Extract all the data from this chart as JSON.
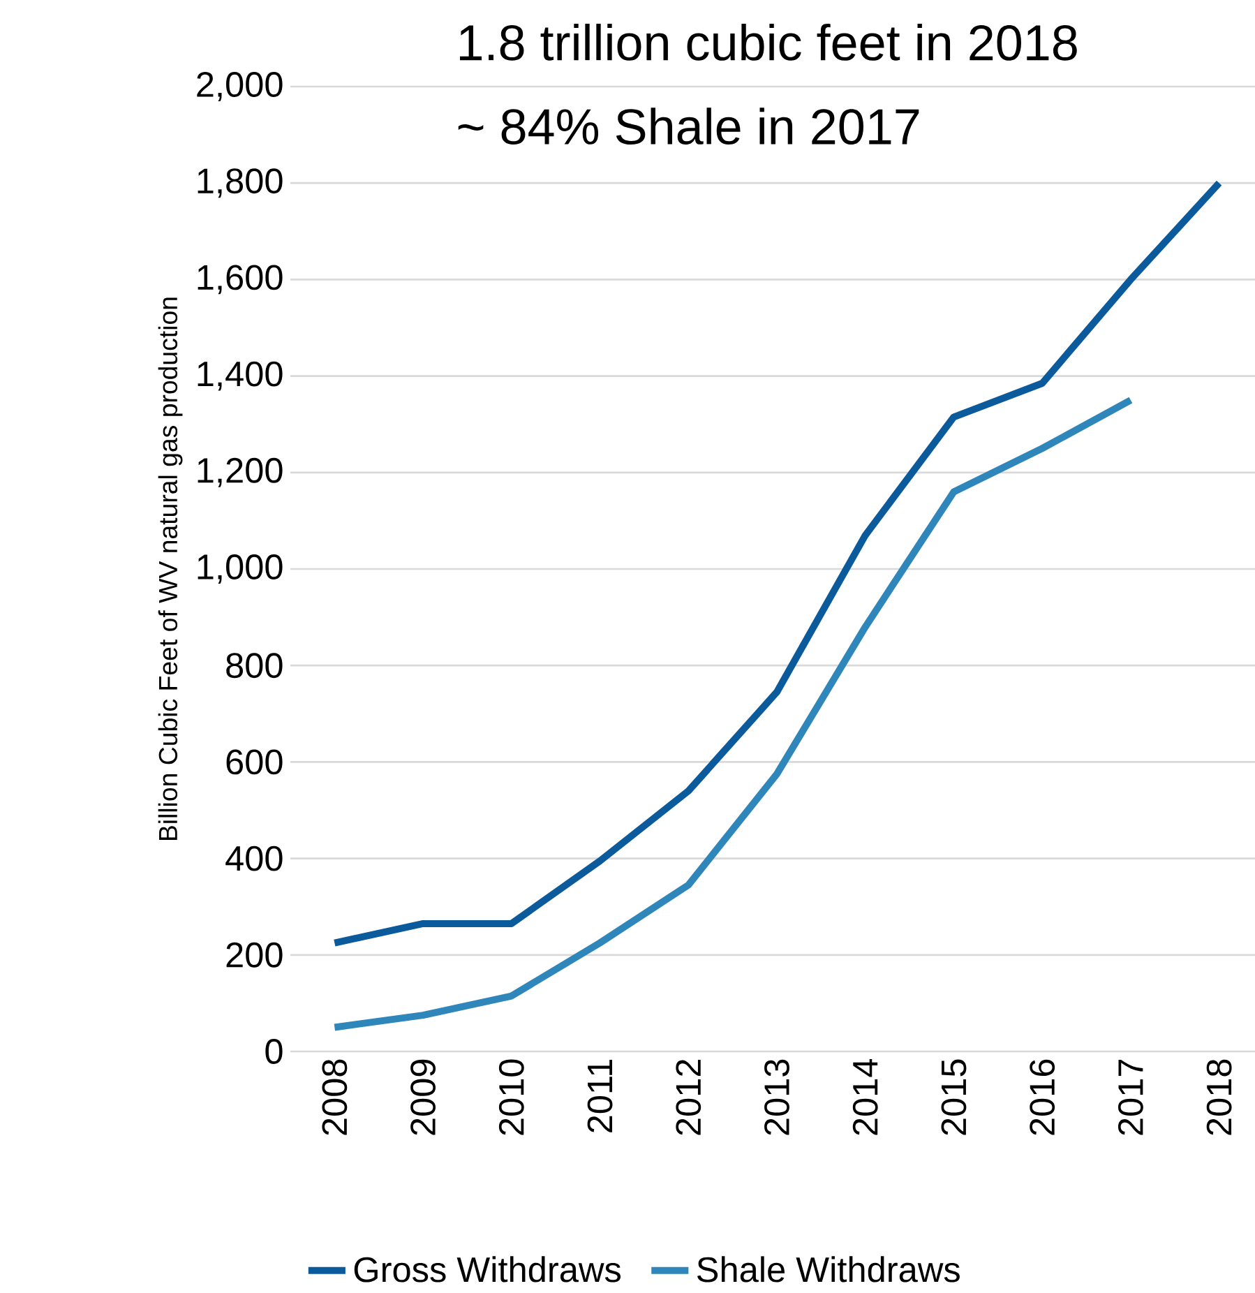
{
  "chart_data": {
    "type": "line",
    "ylabel": "Billion Cubic Feet of WV natural gas production",
    "categories": [
      "2008",
      "2009",
      "2010",
      "2011",
      "2012",
      "2013",
      "2014",
      "2015",
      "2016",
      "2017",
      "2018"
    ],
    "series": [
      {
        "name": "Gross Withdraws",
        "color": "#0b5a9c",
        "values": [
          225,
          265,
          265,
          395,
          540,
          745,
          1070,
          1315,
          1385,
          1600,
          1800
        ]
      },
      {
        "name": "Shale Withdraws",
        "color": "#2e86ba",
        "values": [
          50,
          75,
          115,
          225,
          345,
          575,
          880,
          1160,
          1250,
          1350,
          null
        ]
      }
    ],
    "ylim": [
      0,
      2000
    ],
    "yticks": [
      0,
      200,
      400,
      600,
      800,
      {
        "value": 1000,
        "label": "1,000"
      },
      {
        "value": 1200,
        "label": "1,200"
      },
      {
        "value": 1400,
        "label": "1,400"
      },
      {
        "value": 1600,
        "label": "1,600"
      },
      {
        "value": 1800,
        "label": "1,800"
      },
      {
        "value": 2000,
        "label": "2,000"
      }
    ],
    "annotations": [
      "1.8 trillion cubic feet in 2018",
      "~ 84% Shale in 2017"
    ],
    "grid": "y",
    "legend": "bottom",
    "marker": "none",
    "line_style": "solid"
  }
}
